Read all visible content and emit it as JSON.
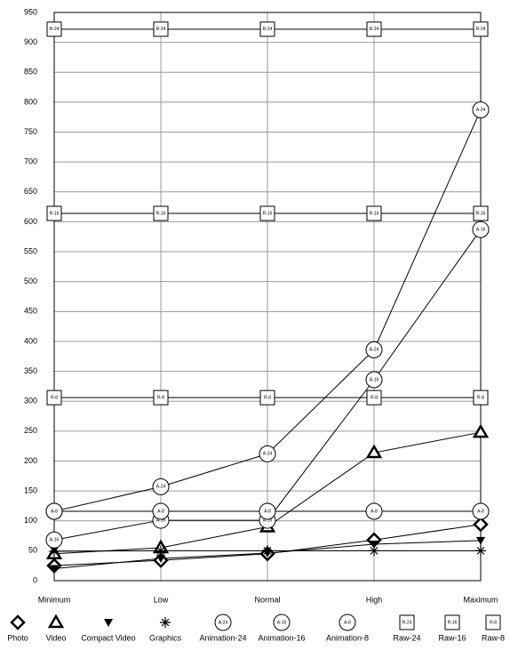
{
  "chart_data": {
    "type": "line",
    "categories": [
      "Minimum",
      "Low",
      "Normal",
      "High",
      "Maximum"
    ],
    "ylim": [
      0,
      950
    ],
    "yticks": [
      0,
      50,
      100,
      150,
      200,
      250,
      300,
      350,
      400,
      450,
      500,
      550,
      600,
      650,
      700,
      750,
      800,
      850,
      900,
      950
    ],
    "grid": true,
    "legend": "bottom",
    "series": [
      {
        "name": "Photo",
        "color": "#000000",
        "marker": "diamond",
        "values": [
          25,
          34,
          45,
          68,
          94
        ]
      },
      {
        "name": "Video",
        "color": "#000000",
        "marker": "triangle",
        "values": [
          45,
          55,
          90,
          214,
          248
        ]
      },
      {
        "name": "Compact Video",
        "color": "#000000",
        "marker": "down-triangle",
        "values": [
          20,
          37,
          46,
          61,
          67
        ]
      },
      {
        "name": "Graphics",
        "color": "#000000",
        "marker": "asterisk",
        "values": [
          49,
          50,
          50,
          50,
          50
        ]
      },
      {
        "name": "Animation-24",
        "color": "#000000",
        "marker": "circle",
        "marker_text": "A-24",
        "values": [
          116,
          157,
          212,
          386,
          787
        ]
      },
      {
        "name": "Animation-16",
        "color": "#000000",
        "marker": "circle",
        "marker_text": "A-16",
        "values": [
          68,
          101,
          101,
          336,
          587
        ]
      },
      {
        "name": "Animation-8",
        "color": "#000000",
        "marker": "circle",
        "marker_text": "A-8",
        "values": [
          116,
          116,
          116,
          116,
          116
        ]
      },
      {
        "name": "Raw-24",
        "color": "#000000",
        "marker": "square",
        "marker_text": "R-24",
        "values": [
          922,
          922,
          922,
          922,
          922
        ]
      },
      {
        "name": "Raw-16",
        "color": "#000000",
        "marker": "square",
        "marker_text": "R-16",
        "values": [
          614,
          614,
          614,
          614,
          614
        ]
      },
      {
        "name": "Raw-8",
        "color": "#000000",
        "marker": "square",
        "marker_text": "R-8",
        "values": [
          306,
          306,
          306,
          306,
          306
        ]
      }
    ]
  }
}
